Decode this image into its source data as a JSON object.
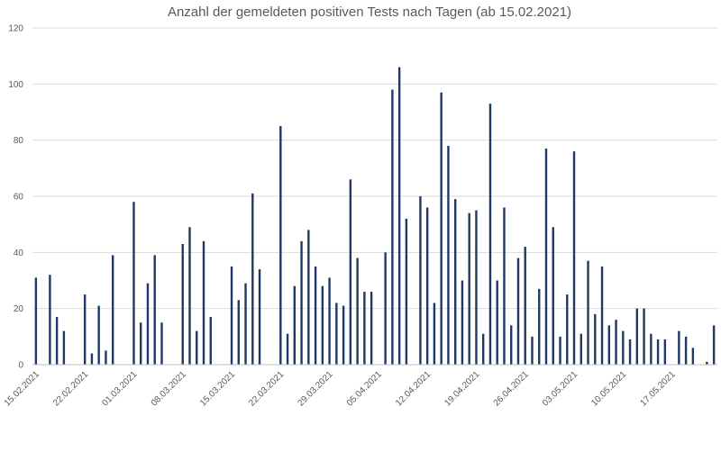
{
  "chart_data": {
    "type": "bar",
    "title": "Anzahl der gemeldeten positiven Tests nach Tagen (ab 15.02.2021)",
    "xlabel": "",
    "ylabel": "",
    "ylim": [
      0,
      120
    ],
    "yticks": [
      0,
      20,
      40,
      60,
      80,
      100,
      120
    ],
    "grid": true,
    "legend": "none",
    "bar_color": "#1f3864",
    "categories": [
      "15.02.2021",
      "16.02.2021",
      "17.02.2021",
      "18.02.2021",
      "19.02.2021",
      "20.02.2021",
      "21.02.2021",
      "22.02.2021",
      "23.02.2021",
      "24.02.2021",
      "25.02.2021",
      "26.02.2021",
      "27.02.2021",
      "28.02.2021",
      "01.03.2021",
      "02.03.2021",
      "03.03.2021",
      "04.03.2021",
      "05.03.2021",
      "06.03.2021",
      "07.03.2021",
      "08.03.2021",
      "09.03.2021",
      "10.03.2021",
      "11.03.2021",
      "12.03.2021",
      "13.03.2021",
      "14.03.2021",
      "15.03.2021",
      "16.03.2021",
      "17.03.2021",
      "18.03.2021",
      "19.03.2021",
      "20.03.2021",
      "21.03.2021",
      "22.03.2021",
      "23.03.2021",
      "24.03.2021",
      "25.03.2021",
      "26.03.2021",
      "27.03.2021",
      "28.03.2021",
      "29.03.2021",
      "30.03.2021",
      "31.03.2021",
      "01.04.2021",
      "02.04.2021",
      "03.04.2021",
      "04.04.2021",
      "05.04.2021",
      "06.04.2021",
      "07.04.2021",
      "08.04.2021",
      "09.04.2021",
      "10.04.2021",
      "11.04.2021",
      "12.04.2021",
      "13.04.2021",
      "14.04.2021",
      "15.04.2021",
      "16.04.2021",
      "17.04.2021",
      "18.04.2021",
      "19.04.2021",
      "20.04.2021",
      "21.04.2021",
      "22.04.2021",
      "23.04.2021",
      "24.04.2021",
      "25.04.2021",
      "26.04.2021",
      "27.04.2021",
      "28.04.2021",
      "29.04.2021",
      "30.04.2021",
      "01.05.2021",
      "02.05.2021",
      "03.05.2021",
      "04.05.2021",
      "05.05.2021",
      "06.05.2021",
      "07.05.2021",
      "08.05.2021",
      "09.05.2021",
      "10.05.2021",
      "11.05.2021",
      "12.05.2021",
      "13.05.2021",
      "14.05.2021",
      "15.05.2021",
      "16.05.2021",
      "17.05.2021",
      "18.05.2021",
      "19.05.2021",
      "20.05.2021",
      "21.05.2021",
      "22.05.2021",
      "23.05.2021"
    ],
    "values": [
      31,
      0,
      32,
      17,
      12,
      0,
      0,
      25,
      4,
      21,
      5,
      39,
      0,
      0,
      58,
      15,
      29,
      39,
      15,
      0,
      0,
      43,
      49,
      12,
      44,
      17,
      0,
      0,
      35,
      23,
      29,
      61,
      34,
      0,
      0,
      85,
      11,
      28,
      44,
      48,
      35,
      28,
      31,
      22,
      21,
      66,
      38,
      26,
      26,
      0,
      40,
      98,
      106,
      52,
      0,
      60,
      56,
      22,
      97,
      78,
      59,
      30,
      54,
      55,
      11,
      93,
      30,
      56,
      14,
      38,
      42,
      10,
      27,
      77,
      49,
      10,
      25,
      76,
      11,
      37,
      18,
      35,
      14,
      16,
      12,
      9,
      20,
      20,
      11,
      9,
      9,
      0,
      12,
      10,
      6,
      0,
      1,
      14
    ],
    "x_tick_labels": [
      {
        "index": 0,
        "label": "15.02.2021"
      },
      {
        "index": 7,
        "label": "22.02.2021"
      },
      {
        "index": 14,
        "label": "01.03.2021"
      },
      {
        "index": 21,
        "label": "08.03.2021"
      },
      {
        "index": 28,
        "label": "15.03.2021"
      },
      {
        "index": 35,
        "label": "22.03.2021"
      },
      {
        "index": 42,
        "label": "29.03.2021"
      },
      {
        "index": 49,
        "label": "05.04.2021"
      },
      {
        "index": 56,
        "label": "12.04.2021"
      },
      {
        "index": 63,
        "label": "19.04.2021"
      },
      {
        "index": 70,
        "label": "26.04.2021"
      },
      {
        "index": 77,
        "label": "03.05.2021"
      },
      {
        "index": 84,
        "label": "10.05.2021"
      },
      {
        "index": 91,
        "label": "17.05.2021"
      }
    ]
  }
}
